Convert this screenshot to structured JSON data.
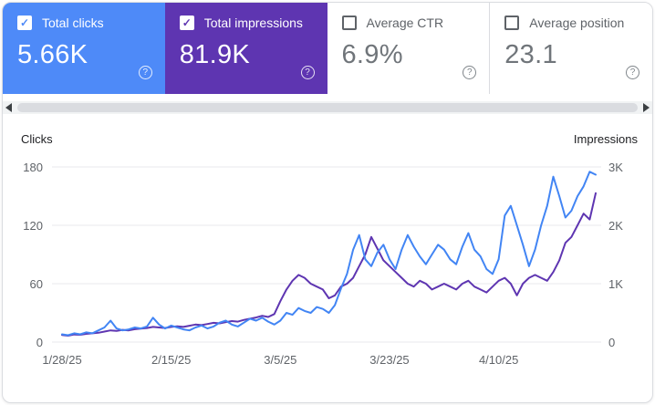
{
  "help_icon": "?",
  "colors": {
    "clicks_blue": "#4285f4",
    "impressions_purple": "#5e35b1",
    "card_blue": "#4e8af8",
    "card_purple": "#5e35b1"
  },
  "cards": [
    {
      "label": "Total clicks",
      "value": "5.66K",
      "checked": true
    },
    {
      "label": "Total impressions",
      "value": "81.9K",
      "checked": true
    },
    {
      "label": "Average CTR",
      "value": "6.9%",
      "checked": false
    },
    {
      "label": "Average position",
      "value": "23.1",
      "checked": false
    }
  ],
  "chart_data": {
    "type": "line",
    "left_axis": {
      "label": "Clicks",
      "max": 180,
      "ticks": [
        0,
        60,
        120,
        180
      ]
    },
    "right_axis": {
      "label": "Impressions",
      "max": 3000,
      "ticks": [
        {
          "label": "0",
          "value": 0
        },
        {
          "label": "1K",
          "value": 1000
        },
        {
          "label": "2K",
          "value": 2000
        },
        {
          "label": "3K",
          "value": 3000
        }
      ]
    },
    "x_tick_labels": [
      "1/28/25",
      "2/15/25",
      "3/5/25",
      "3/23/25",
      "4/10/25"
    ],
    "x_tick_day_index": [
      0,
      18,
      36,
      54,
      72
    ],
    "grid": true,
    "legend_position": "none",
    "series": [
      {
        "name": "Total impressions",
        "axis": "right",
        "color": "#5e35b1",
        "values": [
          120,
          110,
          130,
          125,
          140,
          150,
          160,
          180,
          200,
          190,
          210,
          200,
          220,
          230,
          240,
          260,
          250,
          240,
          260,
          270,
          260,
          280,
          300,
          290,
          310,
          330,
          320,
          340,
          360,
          350,
          380,
          400,
          420,
          450,
          430,
          480,
          700,
          900,
          1050,
          1150,
          1100,
          1000,
          950,
          900,
          750,
          800,
          950,
          1000,
          1100,
          1300,
          1500,
          1800,
          1600,
          1400,
          1300,
          1200,
          1100,
          1000,
          950,
          1050,
          1000,
          900,
          950,
          1000,
          950,
          900,
          1000,
          1050,
          950,
          900,
          850,
          950,
          1050,
          1100,
          1000,
          800,
          1000,
          1100,
          1150,
          1100,
          1050,
          1200,
          1400,
          1700,
          1800,
          2000,
          2200,
          2100,
          2550
        ]
      },
      {
        "name": "Total clicks",
        "axis": "left",
        "color": "#4285f4",
        "values": [
          8,
          7,
          9,
          8,
          10,
          9,
          12,
          15,
          22,
          14,
          12,
          13,
          15,
          14,
          16,
          25,
          18,
          14,
          17,
          15,
          13,
          12,
          15,
          17,
          14,
          16,
          20,
          22,
          18,
          16,
          20,
          24,
          22,
          25,
          21,
          18,
          22,
          30,
          28,
          35,
          32,
          30,
          36,
          34,
          30,
          38,
          55,
          70,
          95,
          110,
          85,
          78,
          92,
          100,
          85,
          75,
          95,
          110,
          98,
          88,
          80,
          90,
          100,
          95,
          85,
          80,
          98,
          112,
          95,
          88,
          75,
          70,
          85,
          130,
          140,
          120,
          100,
          78,
          95,
          120,
          140,
          170,
          150,
          128,
          135,
          150,
          160,
          175,
          172
        ]
      }
    ]
  }
}
